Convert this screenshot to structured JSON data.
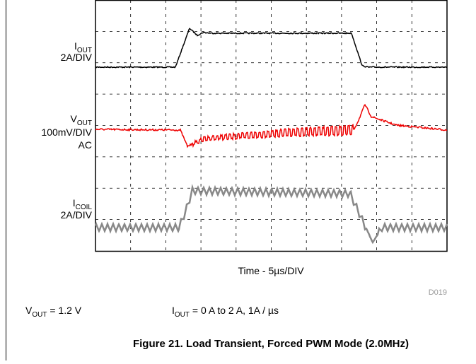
{
  "figure": {
    "traces": [
      {
        "symbol": "I",
        "sub": "OUT",
        "scale": "2A/DIV"
      },
      {
        "symbol": "V",
        "sub": "OUT",
        "scale": "100mV/DIV",
        "extra": "AC"
      },
      {
        "symbol": "I",
        "sub": "COIL",
        "scale": "2A/DIV"
      }
    ],
    "time_label": "Time - 5µs/DIV",
    "code": "D019",
    "conditions": [
      {
        "symbol": "V",
        "sub": "OUT",
        "text": " = 1.2 V"
      },
      {
        "symbol": "I",
        "sub": "OUT",
        "text": " = 0 A to 2 A, 1A / µs"
      }
    ],
    "caption": "Figure 21. Load Transient, Forced PWM Mode (2.0MHz)"
  }
}
